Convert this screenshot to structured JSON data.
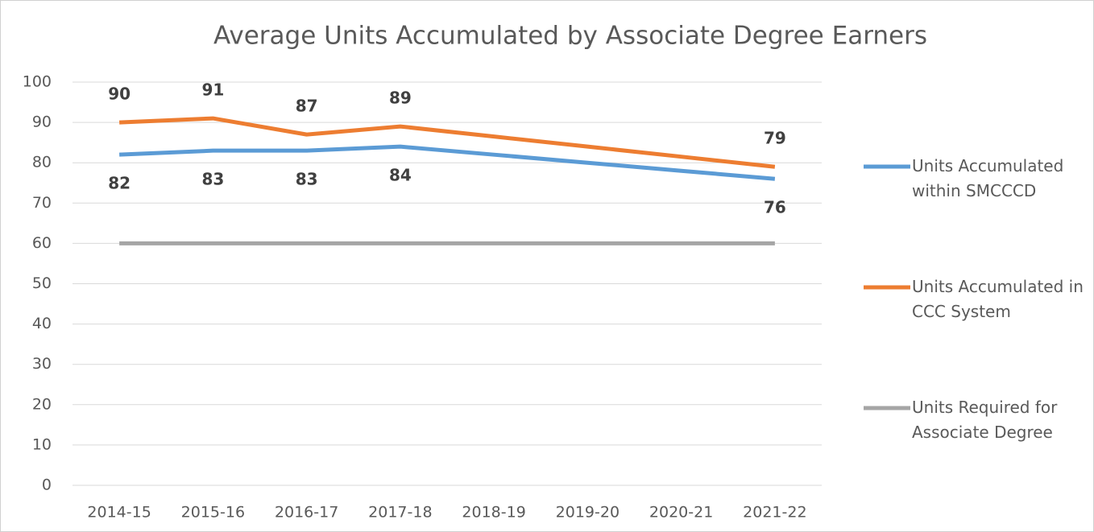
{
  "chart_data": {
    "type": "line",
    "title": "Average Units Accumulated by Associate Degree Earners",
    "categories": [
      "2014-15",
      "2015-16",
      "2016-17",
      "2017-18",
      "2018-19",
      "2019-20",
      "2020-21",
      "2021-22"
    ],
    "series": [
      {
        "name": "Units Accumulated within SMCCCD",
        "color": "#5b9bd5",
        "values": [
          82,
          83,
          83,
          84,
          82,
          80,
          78,
          76
        ],
        "value_labels": [
          "82",
          "83",
          "83",
          "84",
          null,
          null,
          null,
          "76"
        ]
      },
      {
        "name": "Units Accumulated in CCC System",
        "color": "#ed7d31",
        "values": [
          90,
          91,
          87,
          89,
          86.5,
          84,
          81.5,
          79
        ],
        "value_labels": [
          "90",
          "91",
          "87",
          "89",
          null,
          null,
          null,
          "79"
        ]
      },
      {
        "name": "Units Required for Associate Degree",
        "color": "#a5a5a5",
        "values": [
          60,
          60,
          60,
          60,
          60,
          60,
          60,
          60
        ]
      }
    ],
    "ylim": [
      0,
      100
    ],
    "yticks": [
      0,
      10,
      20,
      30,
      40,
      50,
      60,
      70,
      80,
      90,
      100
    ],
    "grid": true,
    "legend": "right"
  }
}
